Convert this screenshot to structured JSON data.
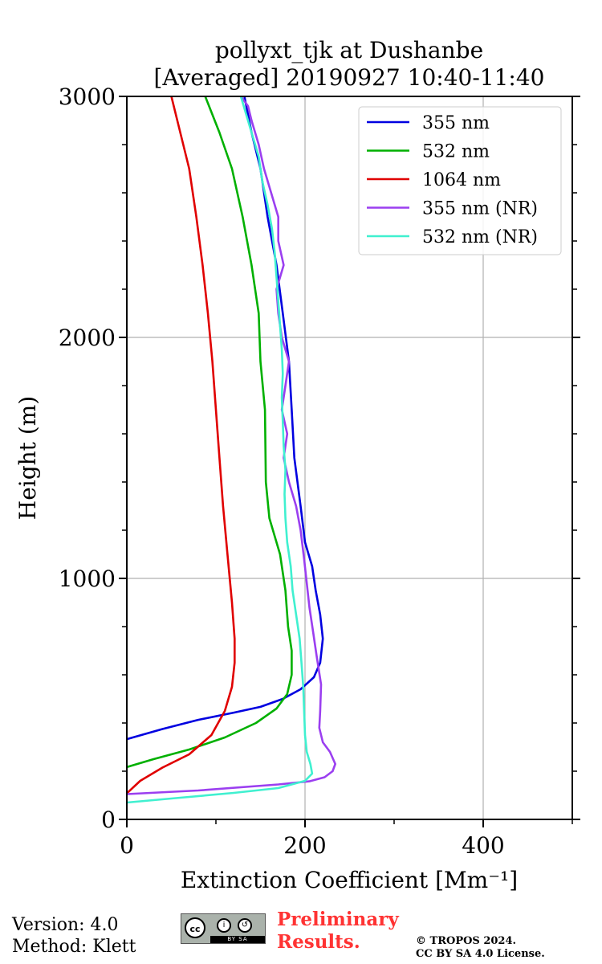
{
  "chart_data": {
    "type": "line",
    "title": [
      "pollyxt_tjk at Dushanbe",
      "[Averaged] 20190927 10:40-11:40"
    ],
    "xlabel": "Extinction Coefficient [Mm⁻¹]",
    "ylabel": "Height (m)",
    "xlim": [
      0,
      500
    ],
    "ylim": [
      0,
      3000
    ],
    "xticks": [
      0,
      200,
      400
    ],
    "xtick_labels": [
      "0",
      "200",
      "400"
    ],
    "yticks": [
      0,
      1000,
      2000,
      3000
    ],
    "ytick_labels": [
      "0",
      "1000",
      "2000",
      "3000"
    ],
    "grid": true,
    "legend_position": "top-right",
    "series": [
      {
        "name": "355 nm",
        "color": "#0000e0",
        "points": [
          [
            0,
            333
          ],
          [
            40,
            375
          ],
          [
            80,
            413
          ],
          [
            120,
            443
          ],
          [
            150,
            467
          ],
          [
            175,
            500
          ],
          [
            195,
            540
          ],
          [
            210,
            590
          ],
          [
            217,
            650
          ],
          [
            220,
            750
          ],
          [
            217,
            850
          ],
          [
            212,
            950
          ],
          [
            208,
            1050
          ],
          [
            200,
            1150
          ],
          [
            195,
            1300
          ],
          [
            188,
            1500
          ],
          [
            185,
            1700
          ],
          [
            182,
            1900
          ],
          [
            175,
            2100
          ],
          [
            168,
            2300
          ],
          [
            158,
            2500
          ],
          [
            150,
            2700
          ],
          [
            140,
            2850
          ],
          [
            132,
            3000
          ]
        ]
      },
      {
        "name": "532 nm",
        "color": "#00b000",
        "points": [
          [
            0,
            217
          ],
          [
            30,
            250
          ],
          [
            70,
            290
          ],
          [
            110,
            340
          ],
          [
            145,
            400
          ],
          [
            168,
            460
          ],
          [
            180,
            520
          ],
          [
            185,
            600
          ],
          [
            185,
            700
          ],
          [
            181,
            800
          ],
          [
            178,
            950
          ],
          [
            172,
            1100
          ],
          [
            160,
            1250
          ],
          [
            156,
            1400
          ],
          [
            155,
            1700
          ],
          [
            150,
            1900
          ],
          [
            148,
            2100
          ],
          [
            140,
            2300
          ],
          [
            130,
            2500
          ],
          [
            118,
            2700
          ],
          [
            104,
            2850
          ],
          [
            88,
            3000
          ]
        ]
      },
      {
        "name": "1064 nm",
        "color": "#e00000",
        "points": [
          [
            0,
            108
          ],
          [
            15,
            160
          ],
          [
            40,
            215
          ],
          [
            70,
            270
          ],
          [
            95,
            350
          ],
          [
            110,
            450
          ],
          [
            118,
            550
          ],
          [
            121,
            650
          ],
          [
            121,
            750
          ],
          [
            118,
            900
          ],
          [
            113,
            1100
          ],
          [
            108,
            1300
          ],
          [
            104,
            1500
          ],
          [
            100,
            1700
          ],
          [
            96,
            1900
          ],
          [
            91,
            2100
          ],
          [
            85,
            2300
          ],
          [
            78,
            2500
          ],
          [
            70,
            2700
          ],
          [
            60,
            2850
          ],
          [
            50,
            3000
          ]
        ]
      },
      {
        "name": "355 nm (NR)",
        "color": "#9b3ff0",
        "points": [
          [
            0,
            105
          ],
          [
            80,
            120
          ],
          [
            170,
            145
          ],
          [
            205,
            158
          ],
          [
            222,
            175
          ],
          [
            231,
            200
          ],
          [
            234,
            230
          ],
          [
            228,
            280
          ],
          [
            220,
            320
          ],
          [
            216,
            380
          ],
          [
            217,
            450
          ],
          [
            218,
            560
          ],
          [
            213,
            680
          ],
          [
            209,
            780
          ],
          [
            205,
            880
          ],
          [
            202,
            980
          ],
          [
            199,
            1080
          ],
          [
            195,
            1200
          ],
          [
            190,
            1300
          ],
          [
            182,
            1400
          ],
          [
            176,
            1500
          ],
          [
            180,
            1600
          ],
          [
            174,
            1700
          ],
          [
            178,
            1800
          ],
          [
            182,
            1900
          ],
          [
            174,
            2000
          ],
          [
            170,
            2100
          ],
          [
            168,
            2200
          ],
          [
            176,
            2300
          ],
          [
            170,
            2400
          ],
          [
            170,
            2500
          ],
          [
            162,
            2600
          ],
          [
            154,
            2700
          ],
          [
            148,
            2800
          ],
          [
            140,
            2900
          ],
          [
            136,
            2960
          ],
          [
            128,
            3000
          ]
        ]
      },
      {
        "name": "532 nm (NR)",
        "color": "#40f0d0",
        "points": [
          [
            0,
            70
          ],
          [
            60,
            90
          ],
          [
            120,
            110
          ],
          [
            170,
            130
          ],
          [
            200,
            160
          ],
          [
            208,
            190
          ],
          [
            206,
            230
          ],
          [
            202,
            280
          ],
          [
            200,
            350
          ],
          [
            199,
            450
          ],
          [
            198,
            550
          ],
          [
            196,
            650
          ],
          [
            194,
            750
          ],
          [
            190,
            850
          ],
          [
            186,
            950
          ],
          [
            184,
            1050
          ],
          [
            180,
            1150
          ],
          [
            178,
            1250
          ],
          [
            177,
            1350
          ],
          [
            178,
            1450
          ],
          [
            176,
            1550
          ],
          [
            175,
            1650
          ],
          [
            174,
            1750
          ],
          [
            175,
            1850
          ],
          [
            174,
            1950
          ],
          [
            172,
            2050
          ],
          [
            170,
            2150
          ],
          [
            168,
            2250
          ],
          [
            166,
            2350
          ],
          [
            163,
            2450
          ],
          [
            158,
            2550
          ],
          [
            152,
            2650
          ],
          [
            148,
            2750
          ],
          [
            140,
            2850
          ],
          [
            132,
            2950
          ],
          [
            128,
            3000
          ]
        ]
      }
    ]
  },
  "footer": {
    "version": "Version: 4.0",
    "method": "Method: Klett",
    "license_badge": "cc-by-sa-badge",
    "preliminary_line1": "Preliminary",
    "preliminary_line2": "Results.",
    "copyright_line1": "© TROPOS 2024.",
    "copyright_line2": "CC BY SA 4.0 License."
  }
}
